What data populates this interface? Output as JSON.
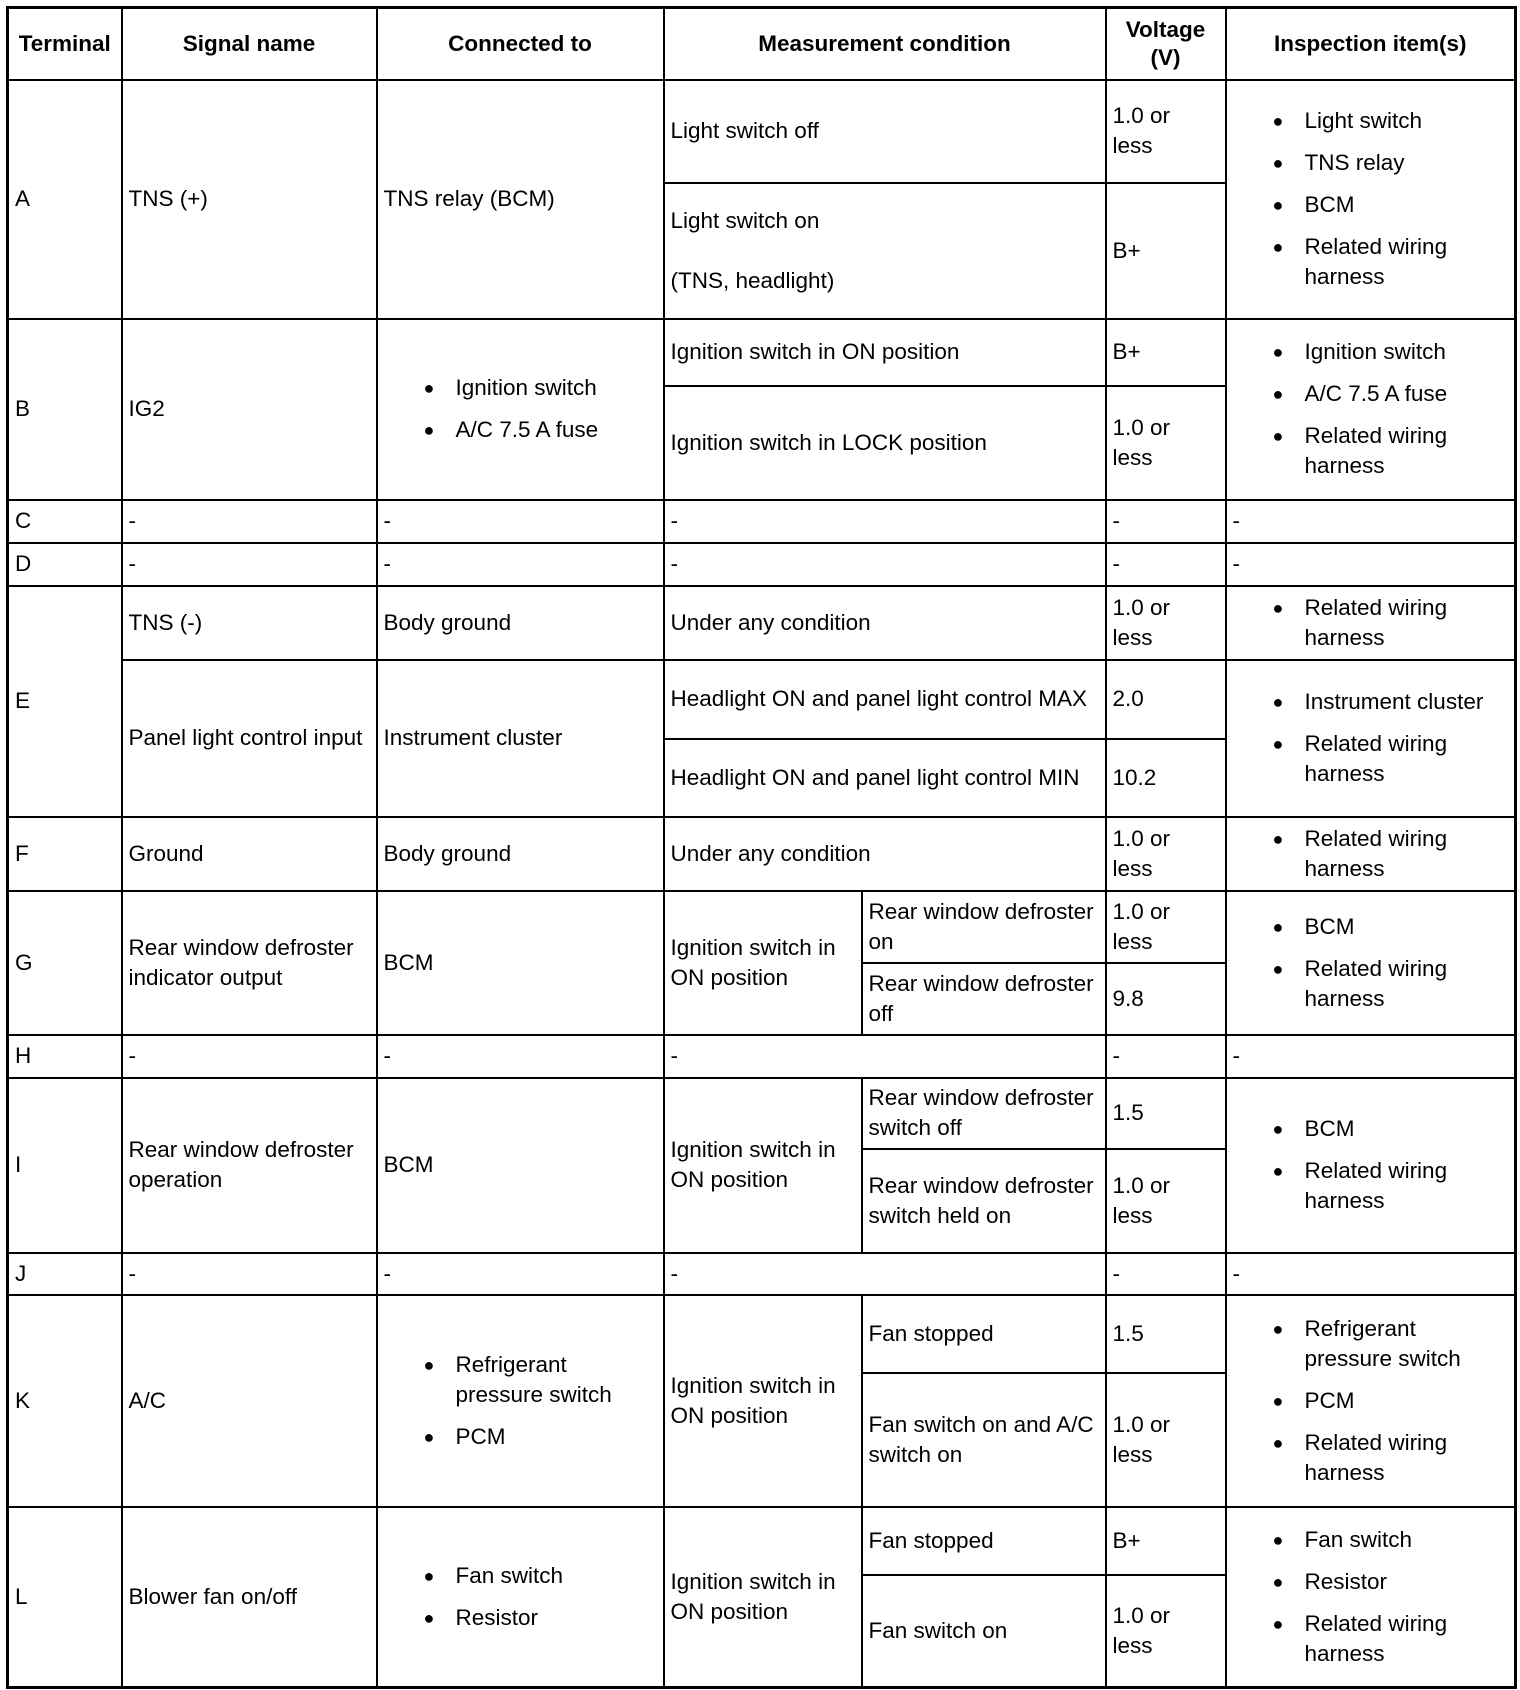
{
  "headers": {
    "terminal": "Terminal",
    "signal": "Signal name",
    "connected": "Connected to",
    "measurement": "Measurement condition",
    "voltage": "Voltage\n(V)",
    "inspection": "Inspection item(s)"
  },
  "rows": [
    {
      "terminal": "A",
      "entries": [
        {
          "signal": "TNS (+)",
          "connected": "TNS relay (BCM)",
          "conditions": [
            {
              "text": "Light switch off",
              "voltage": "1.0 or\nless"
            },
            {
              "text": "Light switch on\n\n(TNS, headlight)",
              "voltage": "B+"
            }
          ],
          "inspection": [
            "Light switch",
            "TNS relay",
            "BCM",
            "Related wiring harness"
          ]
        }
      ]
    },
    {
      "terminal": "B",
      "entries": [
        {
          "signal": "IG2",
          "connected": [
            "Ignition switch",
            "A/C 7.5 A fuse"
          ],
          "conditions": [
            {
              "text": "Ignition switch in ON position",
              "voltage": "B+"
            },
            {
              "text": "Ignition switch in LOCK position",
              "voltage": "1.0 or\nless"
            }
          ],
          "inspection": [
            "Ignition switch",
            "A/C 7.5 A fuse",
            "Related wiring harness"
          ]
        }
      ]
    },
    {
      "terminal": "C",
      "entries": [
        {
          "signal": "-",
          "connected": "-",
          "conditions": [
            {
              "text": "-",
              "voltage": "-"
            }
          ],
          "inspection": "-"
        }
      ]
    },
    {
      "terminal": "D",
      "entries": [
        {
          "signal": "-",
          "connected": "-",
          "conditions": [
            {
              "text": "-",
              "voltage": "-"
            }
          ],
          "inspection": "-"
        }
      ]
    },
    {
      "terminal": "E",
      "entries": [
        {
          "signal": "TNS (-)",
          "connected": "Body ground",
          "conditions": [
            {
              "text": "Under any condition",
              "voltage": "1.0 or\nless"
            }
          ],
          "inspection": [
            "Related wiring harness"
          ]
        },
        {
          "signal": "Panel light control input",
          "connected": "Instrument cluster",
          "conditions": [
            {
              "text": "Headlight ON and panel light control MAX",
              "voltage": "2.0"
            },
            {
              "text": "Headlight ON and panel light control MIN",
              "voltage": "10.2"
            }
          ],
          "inspection": [
            "Instrument cluster",
            "Related wiring harness"
          ]
        }
      ]
    },
    {
      "terminal": "F",
      "entries": [
        {
          "signal": "Ground",
          "connected": "Body ground",
          "conditions": [
            {
              "text": "Under any condition",
              "voltage": "1.0 or\nless"
            }
          ],
          "inspection": [
            "Related wiring harness"
          ]
        }
      ]
    },
    {
      "terminal": "G",
      "entries": [
        {
          "signal": "Rear window defroster indicator output",
          "connected": "BCM",
          "group": "Ignition switch in ON position",
          "conditions": [
            {
              "text": "Rear window defroster on",
              "voltage": "1.0 or\nless"
            },
            {
              "text": "Rear window defroster off",
              "voltage": "9.8"
            }
          ],
          "inspection": [
            "BCM",
            "Related wiring harness"
          ]
        }
      ]
    },
    {
      "terminal": "H",
      "entries": [
        {
          "signal": "-",
          "connected": "-",
          "conditions": [
            {
              "text": "-",
              "voltage": "-"
            }
          ],
          "inspection": "-"
        }
      ]
    },
    {
      "terminal": "I",
      "entries": [
        {
          "signal": "Rear window defroster operation",
          "connected": "BCM",
          "group": "Ignition switch in ON position",
          "conditions": [
            {
              "text": "Rear window defroster switch off",
              "voltage": "1.5"
            },
            {
              "text": "Rear window defroster switch held on",
              "voltage": "1.0 or\nless"
            }
          ],
          "inspection": [
            "BCM",
            "Related wiring harness"
          ]
        }
      ]
    },
    {
      "terminal": "J",
      "entries": [
        {
          "signal": "-",
          "connected": "-",
          "conditions": [
            {
              "text": "-",
              "voltage": "-"
            }
          ],
          "inspection": "-"
        }
      ]
    },
    {
      "terminal": "K",
      "entries": [
        {
          "signal": "A/C",
          "connected": [
            "Refrigerant pressure switch",
            "PCM"
          ],
          "group": "Ignition switch in ON position",
          "conditions": [
            {
              "text": "Fan stopped",
              "voltage": "1.5"
            },
            {
              "text": "Fan switch on and A/C switch on",
              "voltage": "1.0 or\nless"
            }
          ],
          "inspection": [
            "Refrigerant pressure switch",
            "PCM",
            "Related wiring harness"
          ]
        }
      ]
    },
    {
      "terminal": "L",
      "entries": [
        {
          "signal": "Blower fan on/off",
          "connected": [
            "Fan switch",
            "Resistor"
          ],
          "group": "Ignition switch in ON position",
          "conditions": [
            {
              "text": "Fan stopped",
              "voltage": "B+"
            },
            {
              "text": "Fan switch on",
              "voltage": "1.0 or\nless"
            }
          ],
          "inspection": [
            "Fan switch",
            "Resistor",
            "Related wiring harness"
          ]
        }
      ]
    }
  ]
}
